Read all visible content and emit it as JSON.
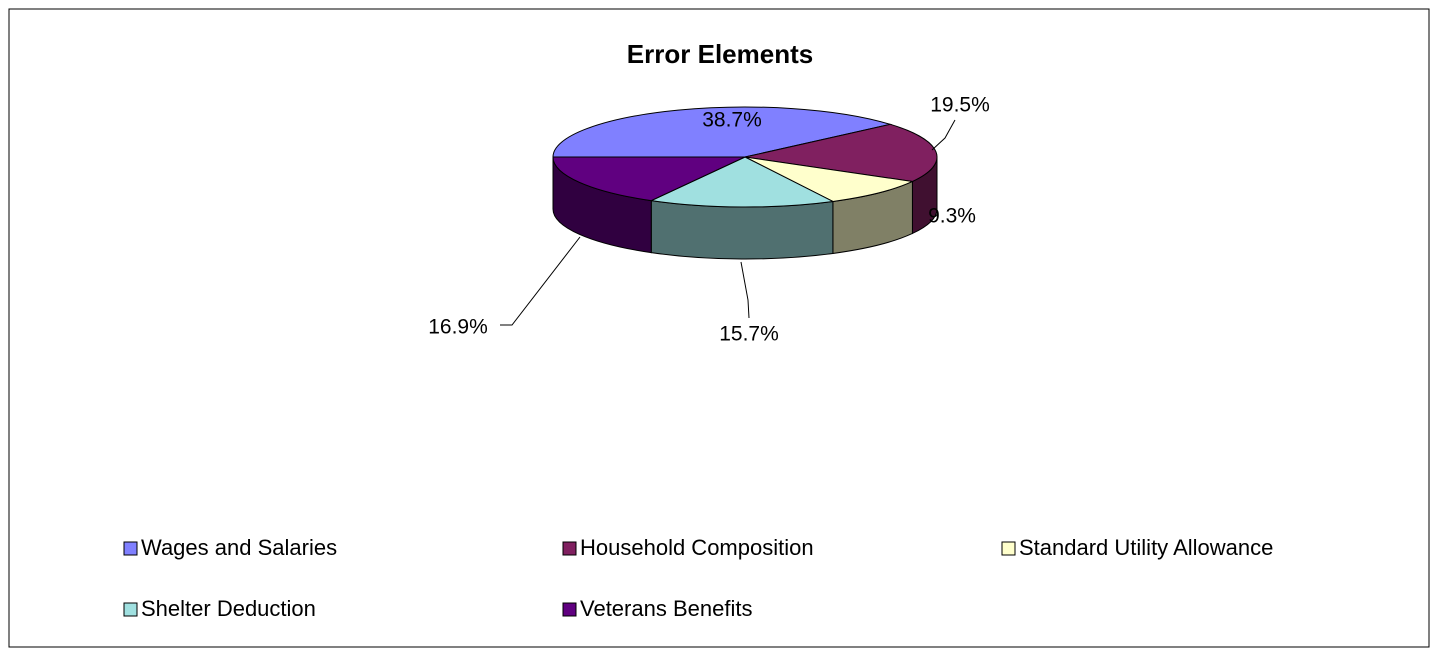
{
  "chart_data": {
    "type": "pie",
    "title": "Error Elements",
    "categories": [
      "Wages and Salaries",
      "Household Composition",
      "Standard Utility Allowance",
      "Shelter Deduction",
      "Veterans Benefits"
    ],
    "values": [
      38.7,
      19.5,
      9.3,
      15.7,
      16.9
    ],
    "value_labels": [
      "38.7%",
      "19.5%",
      "9.3%",
      "15.7%",
      "16.9%"
    ],
    "colors": [
      "#8080ff",
      "#802060",
      "#ffffcc",
      "#a0e0e0",
      "#600080"
    ],
    "legend": "bottom"
  }
}
